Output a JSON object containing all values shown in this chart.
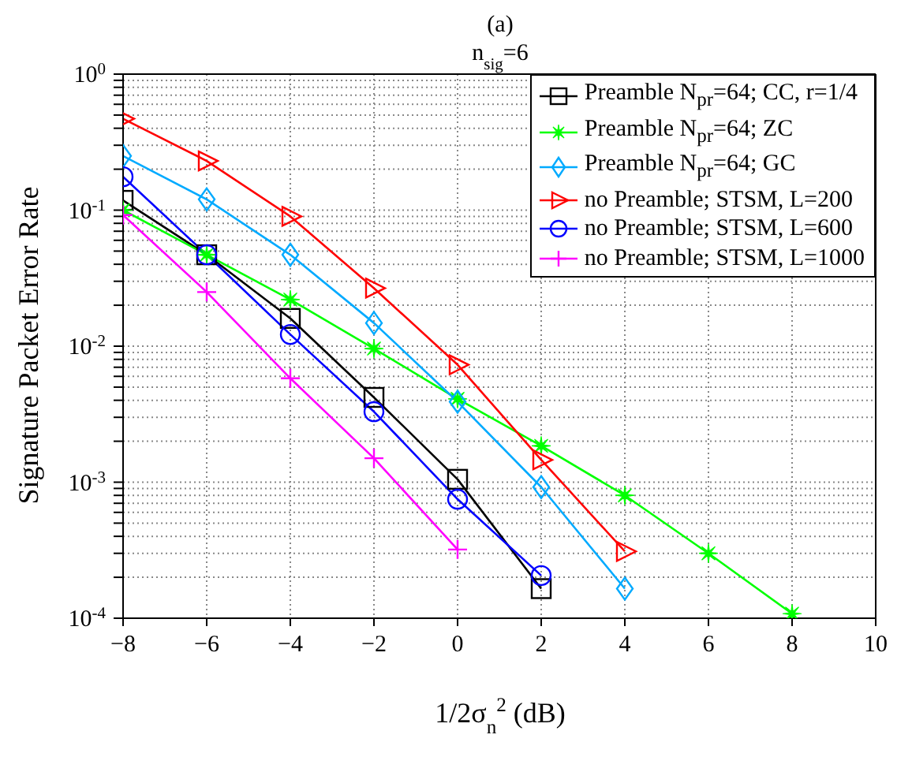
{
  "chart_data": {
    "type": "line",
    "title": "(a)",
    "subtitle": "n$_{sig}$=6",
    "xlabel": "1/2σ$_{n}$$^{2}$ (dB)",
    "ylabel": "Signature Packet Error Rate",
    "xlim": [
      -8,
      10
    ],
    "xticks": [
      -8,
      -6,
      -4,
      -2,
      0,
      2,
      4,
      6,
      8,
      10
    ],
    "ylim": [
      0.0001,
      1
    ],
    "log": true,
    "grid": true,
    "legend": "top right",
    "line_style": "solid",
    "yticks": [
      {
        "value": 0.0001,
        "label": "10$^{-4}$"
      },
      {
        "value": 0.0002,
        "label": null
      },
      {
        "value": 0.0003,
        "label": null
      },
      {
        "value": 0.0004,
        "label": null
      },
      {
        "value": 0.0005,
        "label": null
      },
      {
        "value": 0.0006,
        "label": null
      },
      {
        "value": 0.0007,
        "label": null
      },
      {
        "value": 0.0008,
        "label": null
      },
      {
        "value": 0.0009,
        "label": null
      },
      {
        "value": 0.001,
        "label": "10$^{-3}$"
      },
      {
        "value": 0.002,
        "label": null
      },
      {
        "value": 0.003,
        "label": null
      },
      {
        "value": 0.004,
        "label": null
      },
      {
        "value": 0.005,
        "label": null
      },
      {
        "value": 0.006,
        "label": null
      },
      {
        "value": 0.007,
        "label": null
      },
      {
        "value": 0.008,
        "label": null
      },
      {
        "value": 0.009,
        "label": null
      },
      {
        "value": 0.01,
        "label": "10$^{-2}$"
      },
      {
        "value": 0.02,
        "label": null
      },
      {
        "value": 0.03,
        "label": null
      },
      {
        "value": 0.04,
        "label": null
      },
      {
        "value": 0.05,
        "label": null
      },
      {
        "value": 0.06,
        "label": null
      },
      {
        "value": 0.07,
        "label": null
      },
      {
        "value": 0.08,
        "label": null
      },
      {
        "value": 0.09,
        "label": null
      },
      {
        "value": 0.1,
        "label": "10$^{-1}$"
      },
      {
        "value": 0.2,
        "label": null
      },
      {
        "value": 0.3,
        "label": null
      },
      {
        "value": 0.4,
        "label": null
      },
      {
        "value": 0.5,
        "label": null
      },
      {
        "value": 0.6,
        "label": null
      },
      {
        "value": 0.7,
        "label": null
      },
      {
        "value": 0.8,
        "label": null
      },
      {
        "value": 0.9,
        "label": null
      },
      {
        "value": 1,
        "label": "10$^{0}$"
      }
    ],
    "series": [
      {
        "name": "Preamble N$_{pr}$=64; CC, r=1/4",
        "color": "#000000",
        "marker": "square",
        "x": [
          -8,
          -6,
          -4,
          -2,
          0,
          2
        ],
        "values": [
          0.118,
          0.047,
          0.016,
          0.0042,
          0.00105,
          0.000165
        ]
      },
      {
        "name": "Preamble N$_{pr}$=64; ZC",
        "color": "#00ff00",
        "marker": "star",
        "x": [
          -8,
          -6,
          -4,
          -2,
          0,
          2,
          4,
          6,
          8
        ],
        "values": [
          0.1,
          0.047,
          0.022,
          0.0096,
          0.0041,
          0.00185,
          0.0008,
          0.0003,
          0.000108
        ]
      },
      {
        "name": "Preamble N$_{pr}$=64; GC",
        "color": "#00aaff",
        "marker": "diamond",
        "x": [
          -8,
          -6,
          -4,
          -2,
          0,
          2,
          4
        ],
        "values": [
          0.25,
          0.12,
          0.047,
          0.0148,
          0.0039,
          0.00092,
          0.000165
        ]
      },
      {
        "name": "no Preamble; STSM, L=200",
        "color": "#ff0000",
        "marker": "triangle",
        "x": [
          -8,
          -6,
          -4,
          -2,
          0,
          2,
          4
        ],
        "values": [
          0.47,
          0.23,
          0.09,
          0.0267,
          0.0073,
          0.00146,
          0.00031
        ]
      },
      {
        "name": "no Preamble; STSM, L=600",
        "color": "#0000ff",
        "marker": "circle",
        "x": [
          -8,
          -6,
          -4,
          -2,
          0,
          2
        ],
        "values": [
          0.176,
          0.047,
          0.0122,
          0.0033,
          0.00075,
          0.000206
        ]
      },
      {
        "name": "no Preamble; STSM, L=1000",
        "color": "#ff00ff",
        "marker": "cross",
        "x": [
          -8,
          -6,
          -4,
          -2,
          0
        ],
        "values": [
          0.092,
          0.025,
          0.0058,
          0.0015,
          0.00032
        ]
      }
    ]
  }
}
